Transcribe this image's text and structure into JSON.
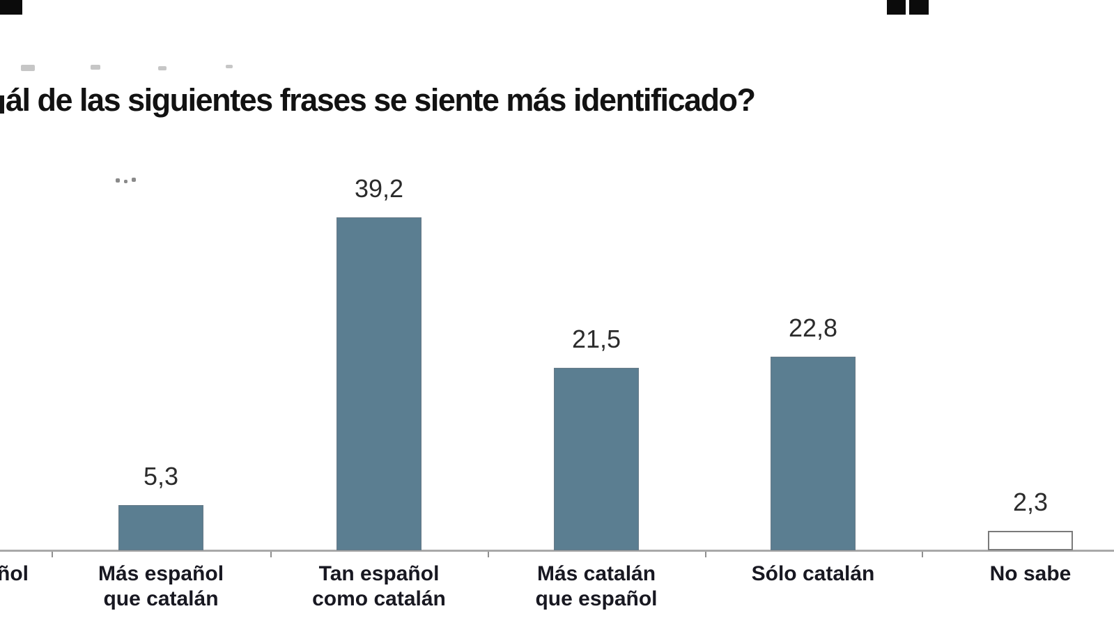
{
  "title": "ál de las siguientes frases se siente más identificado?",
  "chart_data": {
    "type": "bar",
    "title": "ál de las siguientes frases se siente más identificado?",
    "title_note_visible": "question text cut off at left edge of image",
    "ylabel": "",
    "xlabel": "",
    "ylim": [
      0,
      45
    ],
    "grid": false,
    "legend": "none",
    "value_labels_position": "above bars",
    "decimal_separator": "comma",
    "bar_color": "#5b7e91",
    "axis_color": "#a9a9a9",
    "categories": [
      {
        "label_lines": [
          "ñol"
        ],
        "value": null,
        "display_value": "",
        "cut_off_left_edge": true,
        "fill": "#5b7e91"
      },
      {
        "label_lines": [
          "Más español",
          "que catalán"
        ],
        "value": 5.3,
        "display_value": "5,3",
        "fill": "#5b7e91"
      },
      {
        "label_lines": [
          "Tan español",
          "como catalán"
        ],
        "value": 39.2,
        "display_value": "39,2",
        "fill": "#5b7e91"
      },
      {
        "label_lines": [
          "Más catalán",
          "que español"
        ],
        "value": 21.5,
        "display_value": "21,5",
        "fill": "#5b7e91"
      },
      {
        "label_lines": [
          "Sólo catalán"
        ],
        "value": 22.8,
        "display_value": "22,8",
        "fill": "#5b7e91"
      },
      {
        "label_lines": [
          "No sabe"
        ],
        "value": 2.3,
        "display_value": "2,3",
        "fill": "#ffffff"
      }
    ]
  }
}
